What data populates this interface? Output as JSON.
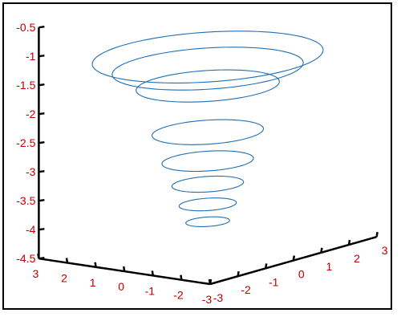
{
  "chart_data": {
    "type": "line",
    "title": "",
    "xlabel": "",
    "ylabel": "",
    "zlabel": "",
    "grid": false,
    "legend": "none",
    "xlim": [
      -3,
      3
    ],
    "ylim": [
      -3,
      3
    ],
    "zlim": [
      -4.5,
      -0.5
    ],
    "x_ticks": [
      "3",
      "2",
      "1",
      "0",
      "-1",
      "-2",
      "-3"
    ],
    "y_ticks": [
      "-3",
      "-2",
      "-1",
      "0",
      "1",
      "2",
      "3"
    ],
    "z_ticks": [
      "-0.5",
      "-1",
      "-1.5",
      "-2",
      "-2.5",
      "-3",
      "-3.5",
      "-4",
      "-4.5"
    ],
    "series": [
      {
        "rings": [
          {
            "z": -1.2,
            "radius": 2.9
          },
          {
            "z": -1.4,
            "radius": 2.4
          },
          {
            "z": -1.7,
            "radius": 1.8
          },
          {
            "z": -2.5,
            "radius": 1.4
          },
          {
            "z": -3.0,
            "radius": 1.15
          },
          {
            "z": -3.4,
            "radius": 0.9
          },
          {
            "z": -3.75,
            "radius": 0.72
          },
          {
            "z": -4.05,
            "radius": 0.55
          }
        ]
      }
    ],
    "colors": {
      "series": "#1f6fb4",
      "axes": "#000000",
      "tick_labels": "#c00000"
    }
  }
}
